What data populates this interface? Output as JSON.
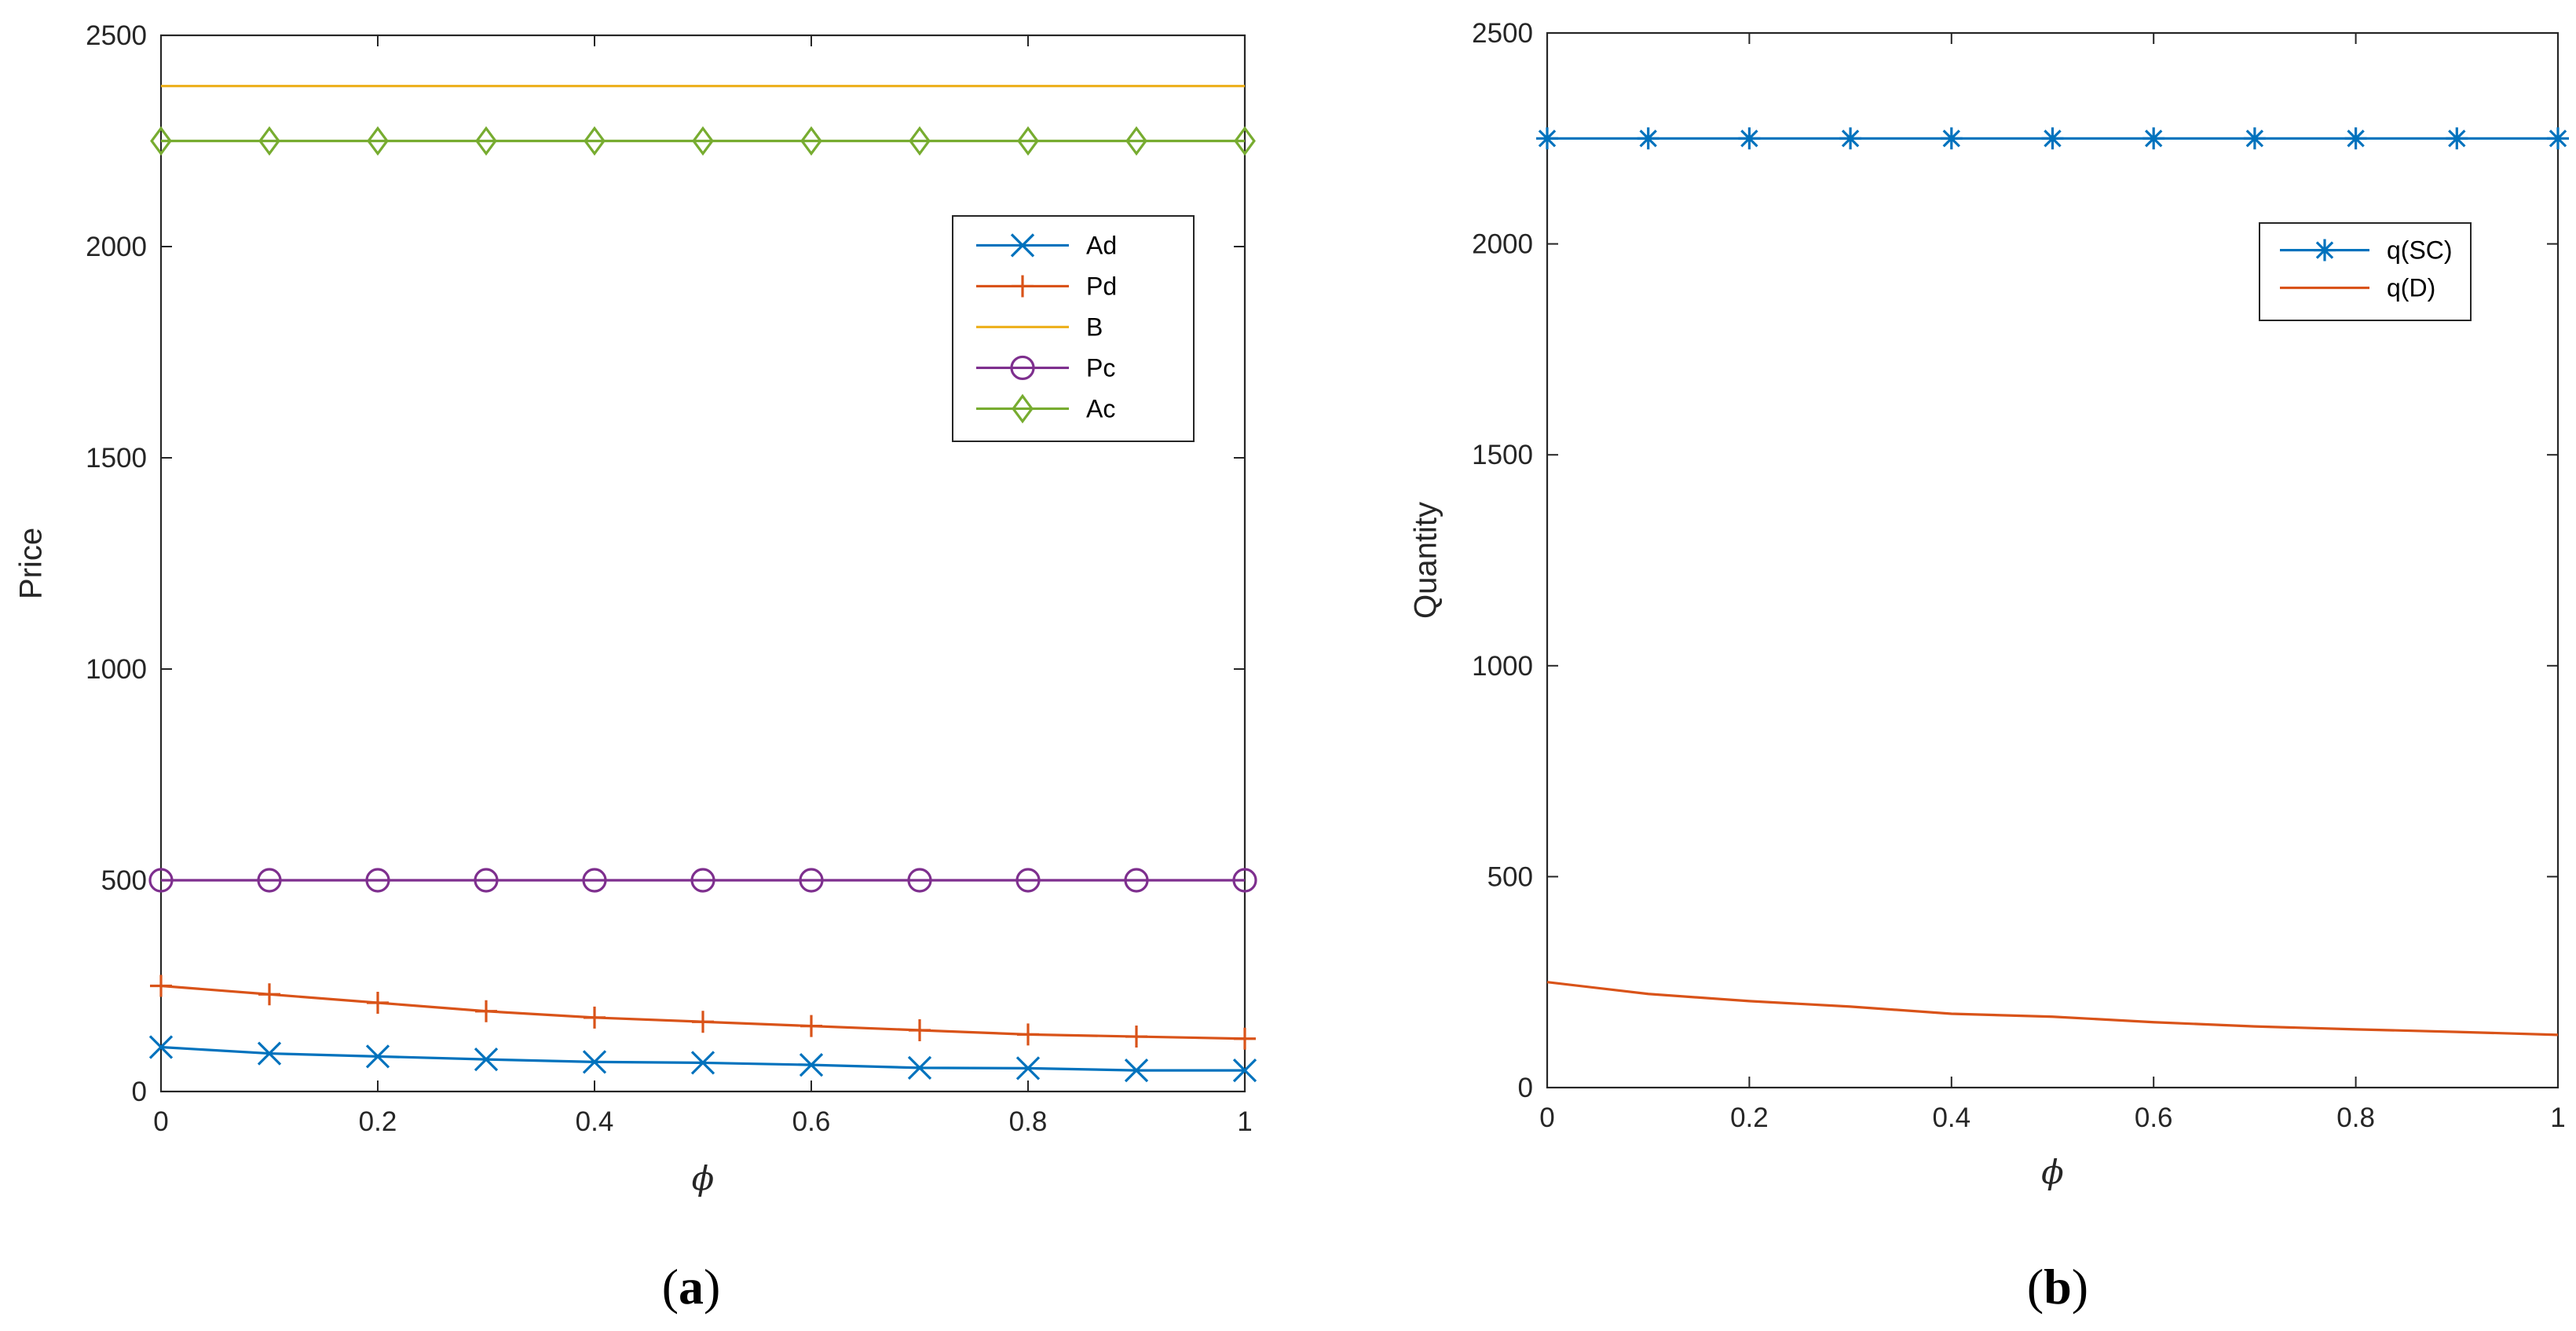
{
  "chart_data": [
    {
      "type": "line",
      "panel": "a",
      "caption_letter": "a",
      "xlabel": "ϕ",
      "ylabel": "Price",
      "xlim": [
        0,
        1
      ],
      "ylim": [
        0,
        2500
      ],
      "xticks": [
        "0",
        "0.2",
        "0.4",
        "0.6",
        "0.8",
        "1"
      ],
      "yticks": [
        "0",
        "500",
        "1000",
        "1500",
        "2000",
        "2500"
      ],
      "grid": false,
      "legend_position": "top-right",
      "x": [
        0,
        0.1,
        0.2,
        0.3,
        0.4,
        0.5,
        0.6,
        0.7,
        0.8,
        0.9,
        1.0
      ],
      "series": [
        {
          "name": "Ad",
          "color": "#0072BD",
          "marker": "x",
          "values": [
            105,
            90,
            83,
            76,
            70,
            68,
            63,
            56,
            55,
            50,
            50
          ]
        },
        {
          "name": "Pd",
          "color": "#D95319",
          "marker": "+",
          "values": [
            250,
            230,
            210,
            190,
            175,
            165,
            155,
            145,
            135,
            130,
            125
          ]
        },
        {
          "name": "B",
          "color": "#EDB120",
          "marker": "none",
          "values": [
            2380,
            2380,
            2380,
            2380,
            2380,
            2380,
            2380,
            2380,
            2380,
            2380,
            2380
          ]
        },
        {
          "name": "Pc",
          "color": "#7E2F8E",
          "marker": "o",
          "values": [
            500,
            500,
            500,
            500,
            500,
            500,
            500,
            500,
            500,
            500,
            500
          ]
        },
        {
          "name": "Ac",
          "color": "#77AC30",
          "marker": "d",
          "values": [
            2250,
            2250,
            2250,
            2250,
            2250,
            2250,
            2250,
            2250,
            2250,
            2250,
            2250
          ]
        }
      ]
    },
    {
      "type": "line",
      "panel": "b",
      "caption_letter": "b",
      "xlabel": "ϕ",
      "ylabel": "Quantity",
      "xlim": [
        0,
        1
      ],
      "ylim": [
        0,
        2500
      ],
      "xticks": [
        "0",
        "0.2",
        "0.4",
        "0.6",
        "0.8",
        "1"
      ],
      "yticks": [
        "0",
        "500",
        "1000",
        "1500",
        "2000",
        "2500"
      ],
      "grid": false,
      "legend_position": "top-right",
      "x": [
        0,
        0.1,
        0.2,
        0.3,
        0.4,
        0.5,
        0.6,
        0.7,
        0.8,
        0.9,
        1.0
      ],
      "series": [
        {
          "name": "q(SC)",
          "color": "#0072BD",
          "marker": "*",
          "values": [
            2250,
            2250,
            2250,
            2250,
            2250,
            2250,
            2250,
            2250,
            2250,
            2250,
            2250
          ]
        },
        {
          "name": "q(D)",
          "color": "#D95319",
          "marker": "none",
          "values": [
            250,
            222,
            205,
            192,
            175,
            168,
            155,
            145,
            138,
            132,
            125
          ]
        }
      ]
    }
  ]
}
